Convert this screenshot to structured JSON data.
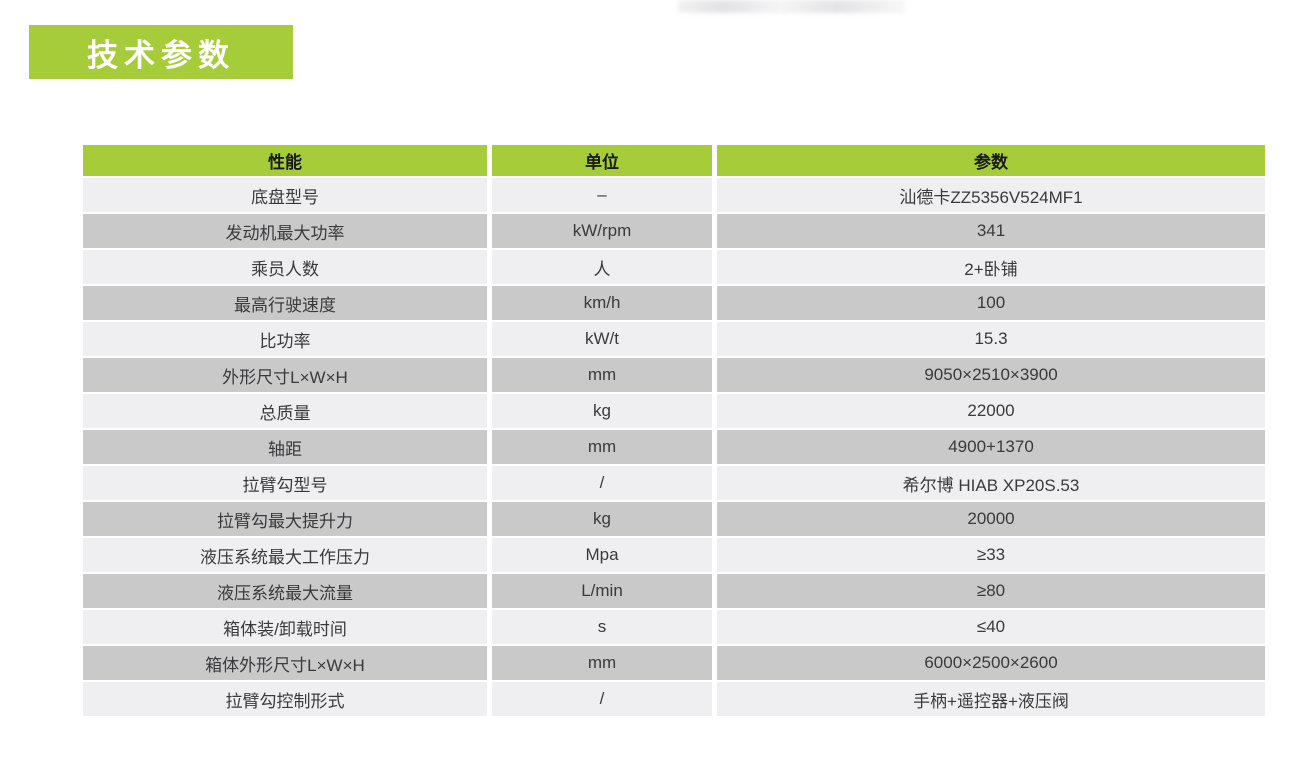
{
  "header": {
    "badge_label": "技术参数"
  },
  "colors": {
    "accent_green": "#a6cc3a",
    "row_light": "#efeff1",
    "row_dark": "#c9c9ca",
    "badge_text": "#ffffff",
    "cell_text": "#3a3a3c"
  },
  "table": {
    "columns": [
      "性能",
      "单位",
      "参数"
    ],
    "rows": [
      {
        "performance": "底盘型号",
        "unit": "–",
        "parameter": "汕德卡ZZ5356V524MF1"
      },
      {
        "performance": "发动机最大功率",
        "unit": "kW/rpm",
        "parameter": "341"
      },
      {
        "performance": "乘员人数",
        "unit": "人",
        "parameter": "2+卧铺"
      },
      {
        "performance": "最高行驶速度",
        "unit": "km/h",
        "parameter": "100"
      },
      {
        "performance": "比功率",
        "unit": "kW/t",
        "parameter": "15.3"
      },
      {
        "performance": "外形尺寸L×W×H",
        "unit": "mm",
        "parameter": "9050×2510×3900"
      },
      {
        "performance": "总质量",
        "unit": "kg",
        "parameter": "22000"
      },
      {
        "performance": "轴距",
        "unit": "mm",
        "parameter": "4900+1370"
      },
      {
        "performance": "拉臂勾型号",
        "unit": "/",
        "parameter": "希尔博 HIAB XP20S.53"
      },
      {
        "performance": "拉臂勾最大提升力",
        "unit": "kg",
        "parameter": "20000"
      },
      {
        "performance": "液压系统最大工作压力",
        "unit": "Mpa",
        "parameter": "≥33"
      },
      {
        "performance": "液压系统最大流量",
        "unit": "L/min",
        "parameter": "≥80"
      },
      {
        "performance": "箱体装/卸载时间",
        "unit": "s",
        "parameter": "≤40"
      },
      {
        "performance": "箱体外形尺寸L×W×H",
        "unit": "mm",
        "parameter": "6000×2500×2600"
      },
      {
        "performance": "拉臂勾控制形式",
        "unit": "/",
        "parameter": "手柄+遥控器+液压阀"
      }
    ]
  }
}
